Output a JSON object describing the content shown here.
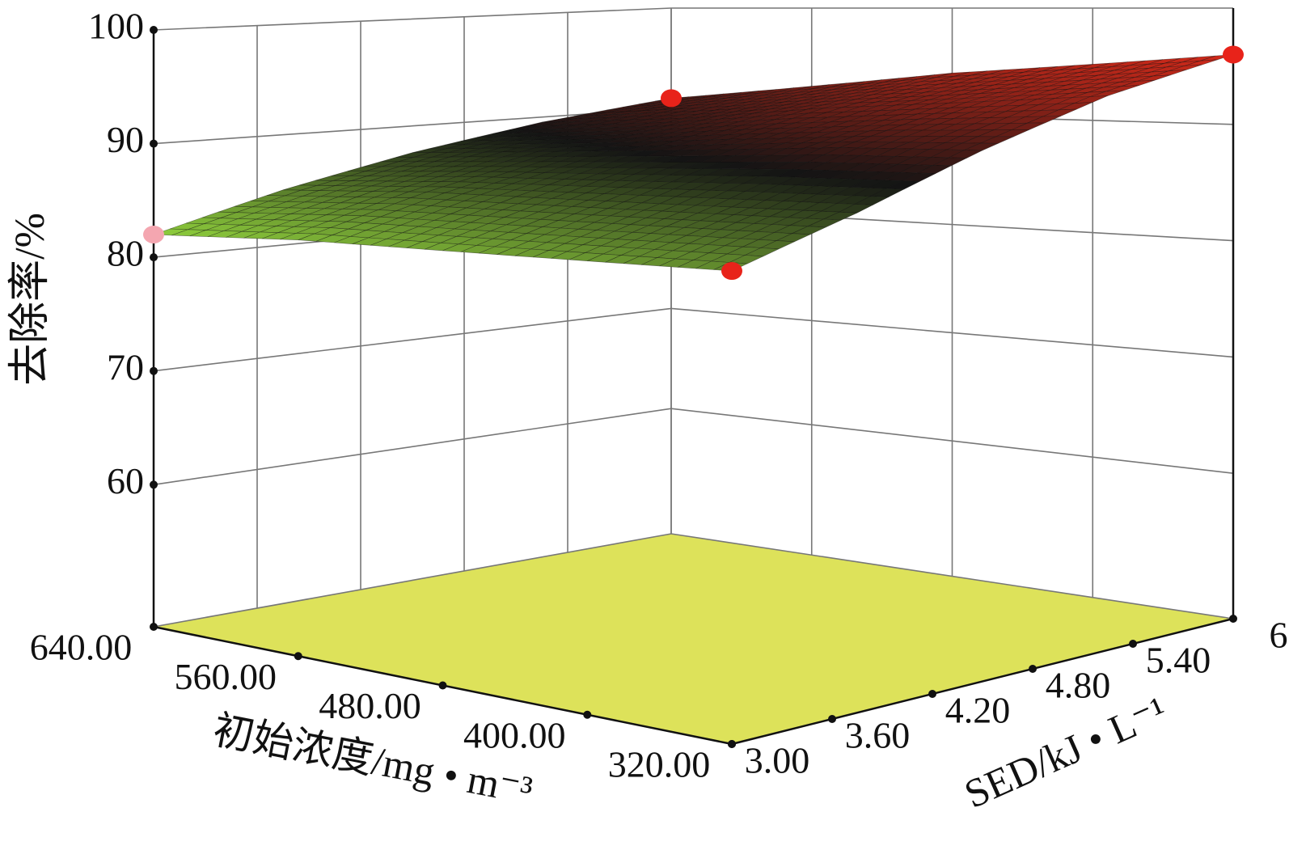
{
  "chart_data": {
    "type": "surface3d",
    "zlabel": "去除率/%",
    "xlabel": "初始浓度/mg • m⁻³",
    "ylabel": "SED/kJ • L⁻¹",
    "xlim": [
      640,
      320
    ],
    "xticks": [
      {
        "value": 640,
        "label": "640.00"
      },
      {
        "value": 560,
        "label": "560.00"
      },
      {
        "value": 480,
        "label": "480.00"
      },
      {
        "value": 400,
        "label": "400.00"
      },
      {
        "value": 320,
        "label": "320.00"
      }
    ],
    "ylim": [
      3,
      6
    ],
    "yticks": [
      {
        "value": 3,
        "label": "3.00"
      },
      {
        "value": 3.6,
        "label": "3.60"
      },
      {
        "value": 4.2,
        "label": "4.20"
      },
      {
        "value": 4.8,
        "label": "4.80"
      },
      {
        "value": 5.4,
        "label": "5.40"
      },
      6
    ],
    "zlim": [
      47.5,
      100
    ],
    "zticks": [
      60,
      70,
      80,
      90,
      100
    ],
    "grid": true,
    "floor_color": "#dde25a",
    "colormap": [
      "#8fcf3c",
      "#141414",
      "#d42a1a"
    ],
    "surface": {
      "x": [
        640,
        560,
        480,
        400,
        320
      ],
      "y": [
        3,
        3.75,
        4.5,
        5.25,
        6
      ],
      "z": [
        [
          82,
          85,
          87.5,
          89.5,
          91
        ],
        [
          83,
          86,
          88.5,
          90.5,
          92.5
        ],
        [
          83.5,
          86.5,
          89.5,
          92,
          94
        ],
        [
          84,
          87,
          90.5,
          93,
          95
        ],
        [
          84.5,
          87.5,
          91,
          94,
          96
        ]
      ]
    },
    "points": [
      {
        "x": 640,
        "y": 3,
        "z": 82,
        "color": "#f4a6b0"
      },
      {
        "x": 640,
        "y": 6,
        "z": 91,
        "color": "#e8231a"
      },
      {
        "x": 320,
        "y": 3,
        "z": 84.5,
        "color": "#e8231a"
      },
      {
        "x": 320,
        "y": 6,
        "z": 96,
        "color": "#e8231a"
      }
    ]
  }
}
